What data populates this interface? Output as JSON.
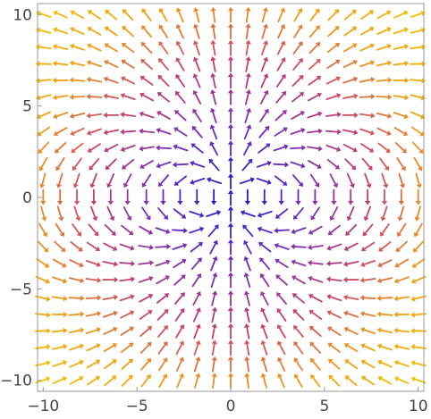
{
  "chart_data": {
    "type": "vector_field",
    "field": "dipole: at (x,y) vector = (3*x*y/r^5, (2*y^2 - x^2)/r^5), shown as normalized arrows",
    "x": [
      -10.0,
      -9.1,
      -8.2,
      -7.3,
      -6.4,
      -5.5,
      -4.5,
      -3.6,
      -2.7,
      -1.8,
      -0.9,
      0.0,
      0.9,
      1.8,
      2.7,
      3.6,
      4.5,
      5.5,
      6.4,
      7.3,
      8.2,
      9.1,
      10.0
    ],
    "y": [
      -10.0,
      -9.1,
      -8.2,
      -7.3,
      -6.4,
      -5.5,
      -4.5,
      -3.6,
      -2.7,
      -1.8,
      -0.9,
      0.0,
      0.9,
      1.8,
      2.7,
      3.6,
      4.5,
      5.5,
      6.4,
      7.3,
      8.2,
      9.1,
      10.0
    ],
    "xlim": [
      -10.3,
      10.3
    ],
    "ylim": [
      -10.6,
      10.6
    ],
    "xticks": [
      -10,
      -5,
      0,
      5,
      10
    ],
    "yticks": [
      -10,
      -5,
      0,
      5,
      10
    ],
    "xtick_labels": [
      "−10",
      "−5",
      "0",
      "5",
      "10"
    ],
    "ytick_labels": [
      "−10",
      "−5",
      "0",
      "5",
      "10"
    ],
    "color_scale": "magnitude: small = blue, mid = purple, large = orange",
    "colors": [
      "#2a1fd0",
      "#7a2fb8",
      "#c8406e",
      "#f0a014",
      "#f5c000"
    ],
    "grid": false,
    "frame": true,
    "title": "",
    "xlabel": "",
    "ylabel": ""
  }
}
